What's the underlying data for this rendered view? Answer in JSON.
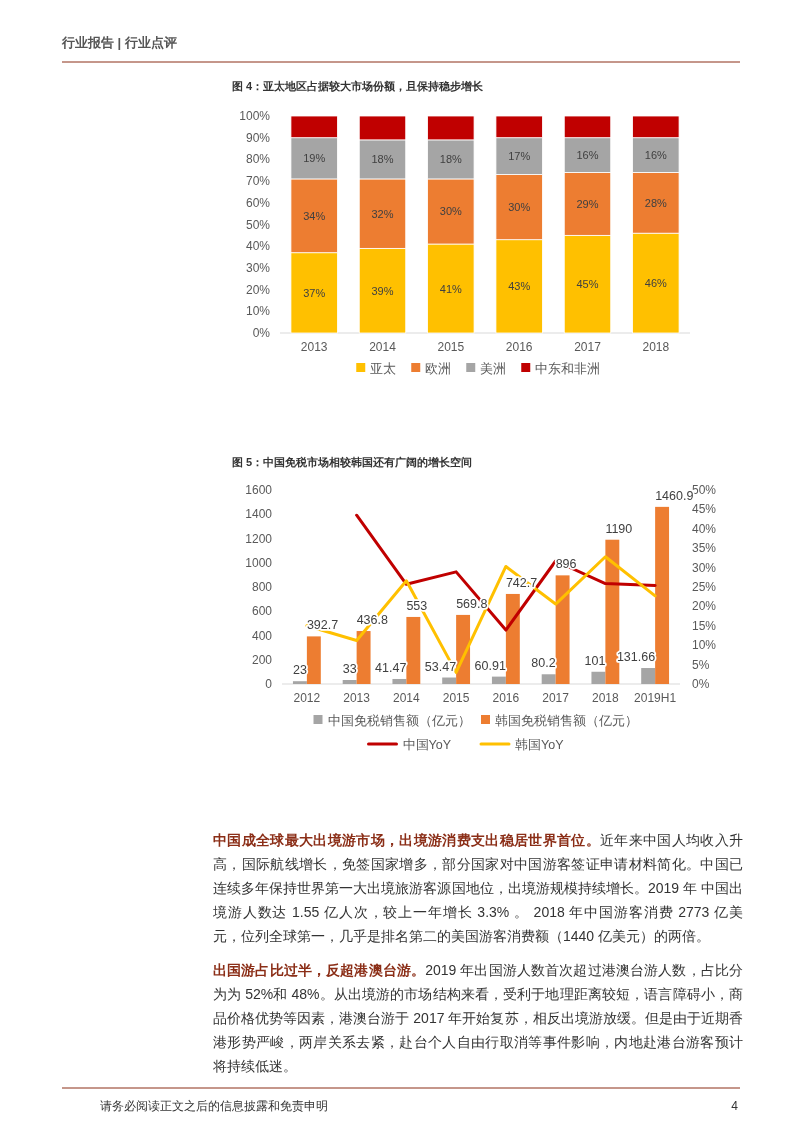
{
  "chart_data": [
    {
      "type": "bar",
      "title": "图 4：亚太地区占据较大市场份额，且保持稳步增长",
      "stacked": true,
      "legend": "bottom",
      "categories": [
        "2013",
        "2014",
        "2015",
        "2016",
        "2017",
        "2018"
      ],
      "ylim": [
        0,
        100
      ],
      "yticks": [
        {
          "value": 0,
          "label": "0%"
        },
        {
          "value": 10,
          "label": "10%"
        },
        {
          "value": 20,
          "label": "20%"
        },
        {
          "value": 30,
          "label": "30%"
        },
        {
          "value": 40,
          "label": "40%"
        },
        {
          "value": 50,
          "label": "50%"
        },
        {
          "value": 60,
          "label": "60%"
        },
        {
          "value": 70,
          "label": "70%"
        },
        {
          "value": 80,
          "label": "80%"
        },
        {
          "value": 90,
          "label": "90%"
        },
        {
          "value": 100,
          "label": "100%"
        }
      ],
      "series": [
        {
          "name": "亚太",
          "color": "#ffc000",
          "values": [
            37,
            39,
            41,
            43,
            45,
            46
          ],
          "value_labels": [
            "37%",
            "39%",
            "41%",
            "43%",
            "45%",
            "46%"
          ]
        },
        {
          "name": "欧洲",
          "color": "#ed7d31",
          "values": [
            34,
            32,
            30,
            30,
            29,
            28
          ],
          "value_labels": [
            "34%",
            "32%",
            "30%",
            "30%",
            "29%",
            "28%"
          ]
        },
        {
          "name": "美洲",
          "color": "#a5a5a5",
          "values": [
            19,
            18,
            18,
            17,
            16,
            16
          ],
          "value_labels": [
            "19%",
            "18%",
            "18%",
            "17%",
            "16%",
            "16%"
          ]
        },
        {
          "name": "中东和非洲",
          "color": "#c00000",
          "values": [
            10,
            11,
            11,
            10,
            10,
            10
          ]
        }
      ],
      "annotations": [
        "行业报告 | 行业点评"
      ]
    },
    {
      "type": "bar",
      "title": "图 5：中国免税市场相较韩国还有广阔的增长空间",
      "legend": "bottom",
      "categories": [
        "2012",
        "2013",
        "2014",
        "2015",
        "2016",
        "2017",
        "2018",
        "2019H1"
      ],
      "ylim": [
        0,
        1600
      ],
      "yticks": [
        0,
        200,
        400,
        600,
        800,
        1000,
        1200,
        1400,
        1600
      ],
      "y2lim": [
        0,
        50
      ],
      "y2ticks": [
        {
          "value": 0,
          "label": "0%"
        },
        {
          "value": 5,
          "label": "5%"
        },
        {
          "value": 10,
          "label": "10%"
        },
        {
          "value": 15,
          "label": "15%"
        },
        {
          "value": 20,
          "label": "20%"
        },
        {
          "value": 25,
          "label": "25%"
        },
        {
          "value": 30,
          "label": "30%"
        },
        {
          "value": 35,
          "label": "35%"
        },
        {
          "value": 40,
          "label": "40%"
        },
        {
          "value": 45,
          "label": "45%"
        },
        {
          "value": 50,
          "label": "50%"
        }
      ],
      "series": [
        {
          "name": "中国免税销售额（亿元）",
          "color": "#a5a5a5",
          "values": [
            23,
            33,
            41.47,
            53.47,
            60.91,
            80.2,
            101,
            131.66
          ],
          "value_labels": [
            "23",
            "33",
            "41.47",
            "53.47",
            "60.91",
            "80.2",
            "101",
            "131.66"
          ]
        },
        {
          "name": "韩国免税销售额（亿元）",
          "color": "#ed7d31",
          "values": [
            392.7,
            436.8,
            553,
            569.8,
            742.7,
            896,
            1190,
            1460.9
          ],
          "value_labels": [
            "392.7",
            "436.8",
            "553",
            "569.8",
            "742.7",
            "896",
            "1190",
            "1460.9"
          ]
        },
        {
          "name": "中国YoY",
          "type": "line",
          "axis": "y2",
          "color": "#c00000",
          "values": [
            null,
            43.5,
            25.7,
            28.9,
            13.9,
            31.7,
            25.9,
            25.4
          ]
        },
        {
          "name": "韩国YoY",
          "type": "line",
          "axis": "y2",
          "color": "#ffc000",
          "values": [
            15,
            11.2,
            26.6,
            3.0,
            30.3,
            20.6,
            32.8,
            22.7
          ]
        }
      ],
      "annotations": [
        "中国成全球最大出境游市场，出境游消费支出稳居世界首位。",
        "近年来中国人均收入升高，国际航线增长，免签国家增多，部分国家对中国游客签证申请材料简化。中国已连续多年保持世界第一大出境旅游客源国地位，出境游规模持续增长。2019 年 中国出境游人数达 1.55 亿人次，较上一年增长 3.3% 。 2018 年中国游客消费 2773 亿美元，位列全球第一，几乎是排名第二的美国游客消费额（1440 亿美元）的两倍。",
        "出国游占比过半，反超港澳台游。",
        "2019 年出国游人数首次超过港澳台游人数，占比分为为 52%和 48%。从出境游的市场结构来看，受利于地理距离较短，语言障碍小，商品价格优势等因素，港澳台游于 2017 年开始复苏，相反出境游放缓。但是由于近期香港形势严峻，两岸关系去紧，赴台个人自由行取消等事件影响，内地赴港台游客预计将持续低迷。",
        "请务必阅读正文之后的信息披露和免责申明",
        "4"
      ]
    }
  ]
}
